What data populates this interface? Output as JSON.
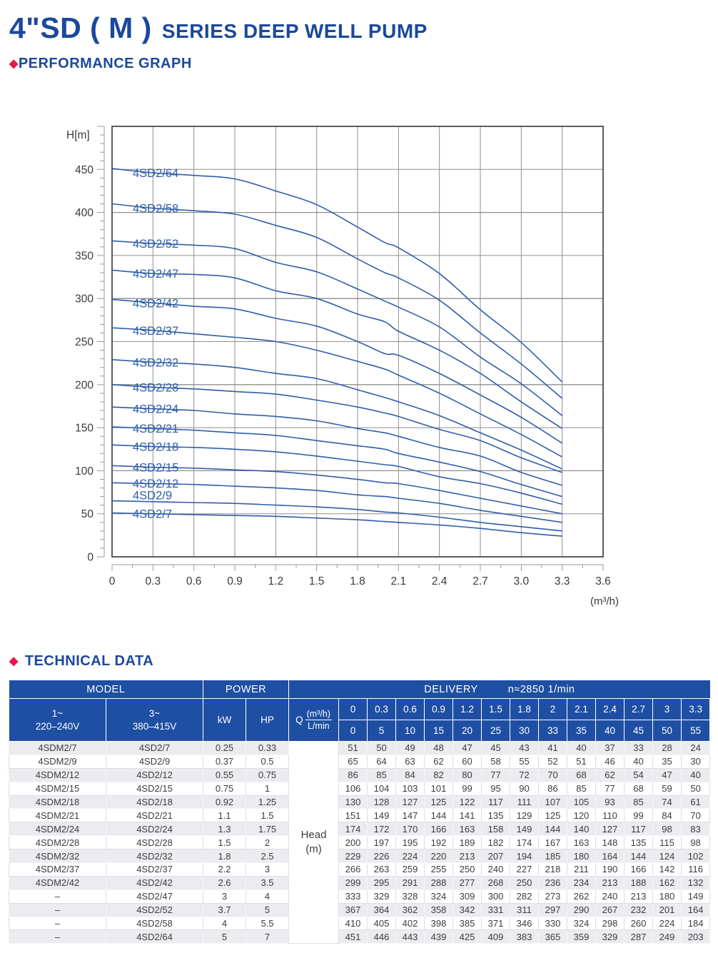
{
  "header": {
    "title_main": "4\"SD ( M )",
    "title_sub": "SERIES DEEP WELL PUMP",
    "section_performance": "PERFORMANCE GRAPH",
    "section_technical": "TECHNICAL DATA"
  },
  "colors": {
    "title_blue": "#1b489b",
    "curve_blue": "#2e5ea9",
    "table_header_blue": "#1e4fa3",
    "accent_red": "#e9174f",
    "row_alt_gray": "#ebebf0",
    "grid_gray": "#8f8f8f",
    "plot_border": "#4a4a4a"
  },
  "chart_data": {
    "type": "line",
    "title": "",
    "xlabel": "(m³/h)",
    "ylabel": "H[m]",
    "xlim": [
      0,
      3.6
    ],
    "ylim": [
      0,
      500
    ],
    "grid": true,
    "legend": "labels-on-curves",
    "x_tick_labels": [
      "0",
      "0.3",
      "0.6",
      "0.9",
      "1.2",
      "1.5",
      "1.8",
      "2.1",
      "2.4",
      "2.7",
      "3.0",
      "3.3",
      "3.6"
    ],
    "y_tick_labels": [
      "0",
      "50",
      "100",
      "150",
      "200",
      "250",
      "300",
      "350",
      "400",
      "450"
    ],
    "x": [
      0,
      0.3,
      0.6,
      0.9,
      1.2,
      1.5,
      1.8,
      2,
      2.1,
      2.4,
      2.7,
      3,
      3.3
    ],
    "series": [
      {
        "name": "4SD2/64",
        "label_dy": 0,
        "values": [
          451,
          446,
          443,
          439,
          425,
          409,
          383,
          365,
          359,
          329,
          287,
          249,
          203
        ]
      },
      {
        "name": "4SD2/58",
        "label_dy": 0,
        "values": [
          410,
          405,
          402,
          398,
          385,
          371,
          346,
          330,
          324,
          298,
          260,
          224,
          184
        ]
      },
      {
        "name": "4SD2/52",
        "label_dy": 0,
        "values": [
          367,
          364,
          362,
          358,
          342,
          331,
          311,
          297,
          290,
          267,
          232,
          201,
          164
        ]
      },
      {
        "name": "4SD2/47",
        "label_dy": 0,
        "values": [
          333,
          329,
          328,
          324,
          309,
          300,
          282,
          273,
          262,
          240,
          213,
          180,
          149
        ]
      },
      {
        "name": "4SD2/42",
        "label_dy": 0,
        "values": [
          299,
          295,
          291,
          288,
          277,
          268,
          250,
          236,
          234,
          213,
          188,
          162,
          132
        ]
      },
      {
        "name": "4SD2/37",
        "label_dy": 0,
        "values": [
          266,
          263,
          259,
          255,
          250,
          240,
          227,
          218,
          211,
          190,
          166,
          142,
          116
        ]
      },
      {
        "name": "4SD2/32",
        "label_dy": 0,
        "values": [
          229,
          226,
          224,
          220,
          213,
          207,
          194,
          185,
          180,
          164,
          144,
          124,
          102
        ]
      },
      {
        "name": "4SD2/28",
        "label_dy": 0,
        "values": [
          200,
          197,
          195,
          192,
          189,
          182,
          174,
          167,
          163,
          148,
          135,
          115,
          98
        ]
      },
      {
        "name": "4SD2/24",
        "label_dy": 0,
        "values": [
          174,
          172,
          170,
          166,
          163,
          158,
          149,
          144,
          140,
          127,
          117,
          98,
          83
        ]
      },
      {
        "name": "4SD2/21",
        "label_dy": 0,
        "values": [
          151,
          149,
          147,
          144,
          141,
          135,
          129,
          125,
          120,
          110,
          99,
          84,
          70
        ]
      },
      {
        "name": "4SD2/18",
        "label_dy": 0,
        "values": [
          130,
          128,
          127,
          125,
          122,
          117,
          111,
          107,
          105,
          93,
          85,
          74,
          61
        ]
      },
      {
        "name": "4SD2/15",
        "label_dy": 0,
        "values": [
          106,
          104,
          103,
          101,
          99,
          95,
          90,
          86,
          85,
          77,
          68,
          59,
          50
        ]
      },
      {
        "name": "4SD2/12",
        "label_dy": 0,
        "values": [
          86,
          85,
          84,
          82,
          80,
          77,
          72,
          70,
          68,
          62,
          54,
          47,
          40
        ]
      },
      {
        "name": "4SD2/9",
        "label_dy": -9,
        "values": [
          65,
          64,
          63,
          62,
          60,
          58,
          55,
          52,
          51,
          46,
          40,
          35,
          30
        ]
      },
      {
        "name": "4SD2/7",
        "label_dy": 0,
        "values": [
          51,
          50,
          49,
          48,
          47,
          45,
          43,
          41,
          40,
          37,
          33,
          28,
          24
        ]
      }
    ]
  },
  "table": {
    "header": {
      "model": "MODEL",
      "power": "POWER",
      "delivery": "DELIVERY",
      "speed": "n≈2850 1/min",
      "phase1_line1": "1~",
      "phase1_line2": "220–240V",
      "phase3_line1": "3~",
      "phase3_line2": "380–415V",
      "kw": "kW",
      "hp": "HP",
      "q_prefix": "Q",
      "q_numerator": "(m³/h)",
      "q_denominator": "L/min",
      "flow_m3h": [
        "0",
        "0.3",
        "0.6",
        "0.9",
        "1.2",
        "1.5",
        "1.8",
        "2",
        "2.1",
        "2.4",
        "2.7",
        "3",
        "3.3"
      ],
      "flow_lmin": [
        "0",
        "5",
        "10",
        "15",
        "20",
        "25",
        "30",
        "33",
        "35",
        "40",
        "45",
        "50",
        "55"
      ]
    },
    "head_unit_line1": "Head",
    "head_unit_line2": "(m)",
    "rows": [
      {
        "model_1ph": "4SDM2/7",
        "model_3ph": "4SD2/7",
        "kw": "0.25",
        "hp": "0.33",
        "heads": [
          51,
          50,
          49,
          48,
          47,
          45,
          43,
          41,
          40,
          37,
          33,
          28,
          24
        ]
      },
      {
        "model_1ph": "4SDM2/9",
        "model_3ph": "4SD2/9",
        "kw": "0.37",
        "hp": "0.5",
        "heads": [
          65,
          64,
          63,
          62,
          60,
          58,
          55,
          52,
          51,
          46,
          40,
          35,
          30
        ]
      },
      {
        "model_1ph": "4SDM2/12",
        "model_3ph": "4SD2/12",
        "kw": "0.55",
        "hp": "0.75",
        "heads": [
          86,
          85,
          84,
          82,
          80,
          77,
          72,
          70,
          68,
          62,
          54,
          47,
          40
        ]
      },
      {
        "model_1ph": "4SDM2/15",
        "model_3ph": "4SD2/15",
        "kw": "0.75",
        "hp": "1",
        "heads": [
          106,
          104,
          103,
          101,
          99,
          95,
          90,
          86,
          85,
          77,
          68,
          59,
          50
        ]
      },
      {
        "model_1ph": "4SDM2/18",
        "model_3ph": "4SD2/18",
        "kw": "0.92",
        "hp": "1.25",
        "heads": [
          130,
          128,
          127,
          125,
          122,
          117,
          111,
          107,
          105,
          93,
          85,
          74,
          61
        ]
      },
      {
        "model_1ph": "4SDM2/21",
        "model_3ph": "4SD2/21",
        "kw": "1.1",
        "hp": "1.5",
        "heads": [
          151,
          149,
          147,
          144,
          141,
          135,
          129,
          125,
          120,
          110,
          99,
          84,
          70
        ]
      },
      {
        "model_1ph": "4SDM2/24",
        "model_3ph": "4SD2/24",
        "kw": "1.3",
        "hp": "1.75",
        "heads": [
          174,
          172,
          170,
          166,
          163,
          158,
          149,
          144,
          140,
          127,
          117,
          98,
          83
        ]
      },
      {
        "model_1ph": "4SDM2/28",
        "model_3ph": "4SD2/28",
        "kw": "1.5",
        "hp": "2",
        "heads": [
          200,
          197,
          195,
          192,
          189,
          182,
          174,
          167,
          163,
          148,
          135,
          115,
          98
        ]
      },
      {
        "model_1ph": "4SDM2/32",
        "model_3ph": "4SD2/32",
        "kw": "1.8",
        "hp": "2.5",
        "heads": [
          229,
          226,
          224,
          220,
          213,
          207,
          194,
          185,
          180,
          164,
          144,
          124,
          102
        ]
      },
      {
        "model_1ph": "4SDM2/37",
        "model_3ph": "4SD2/37",
        "kw": "2.2",
        "hp": "3",
        "heads": [
          266,
          263,
          259,
          255,
          250,
          240,
          227,
          218,
          211,
          190,
          166,
          142,
          116
        ]
      },
      {
        "model_1ph": "4SDM2/42",
        "model_3ph": "4SD2/42",
        "kw": "2.6",
        "hp": "3.5",
        "heads": [
          299,
          295,
          291,
          288,
          277,
          268,
          250,
          236,
          234,
          213,
          188,
          162,
          132
        ]
      },
      {
        "model_1ph": "–",
        "model_3ph": "4SD2/47",
        "kw": "3",
        "hp": "4",
        "heads": [
          333,
          329,
          328,
          324,
          309,
          300,
          282,
          273,
          262,
          240,
          213,
          180,
          149
        ]
      },
      {
        "model_1ph": "–",
        "model_3ph": "4SD2/52",
        "kw": "3.7",
        "hp": "5",
        "heads": [
          367,
          364,
          362,
          358,
          342,
          331,
          311,
          297,
          290,
          267,
          232,
          201,
          164
        ]
      },
      {
        "model_1ph": "–",
        "model_3ph": "4SD2/58",
        "kw": "4",
        "hp": "5.5",
        "heads": [
          410,
          405,
          402,
          398,
          385,
          371,
          346,
          330,
          324,
          298,
          260,
          224,
          184
        ]
      },
      {
        "model_1ph": "–",
        "model_3ph": "4SD2/64",
        "kw": "5",
        "hp": "7",
        "heads": [
          451,
          446,
          443,
          439,
          425,
          409,
          383,
          365,
          359,
          329,
          287,
          249,
          203
        ]
      }
    ]
  }
}
